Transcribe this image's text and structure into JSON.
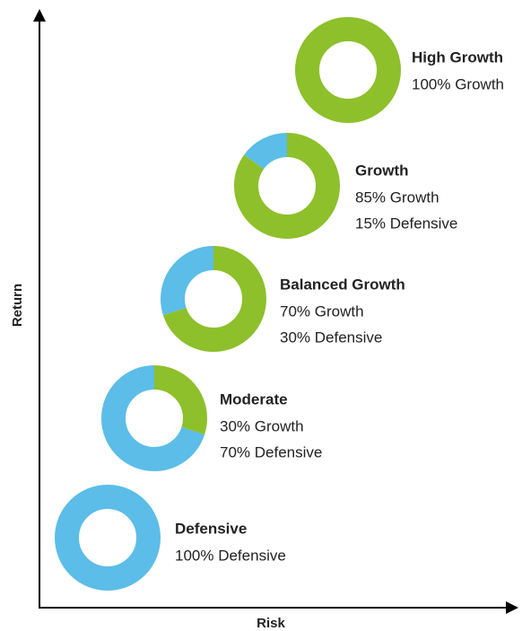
{
  "chart_data": {
    "type": "donut-ladder",
    "x_label": "Risk",
    "y_label": "Return",
    "portfolios": [
      {
        "name": "High Growth",
        "segments": [
          {
            "value": 100,
            "label": "100% Growth",
            "color": "#8dc02b"
          }
        ]
      },
      {
        "name": "Growth",
        "segments": [
          {
            "value": 85,
            "label": "85% Growth",
            "color": "#8dc02b"
          },
          {
            "value": 15,
            "label": "15% Defensive",
            "color": "#5bbde8"
          }
        ]
      },
      {
        "name": "Balanced Growth",
        "segments": [
          {
            "value": 70,
            "label": "70% Growth",
            "color": "#8dc02b"
          },
          {
            "value": 30,
            "label": "30% Defensive",
            "color": "#5bbde8"
          }
        ]
      },
      {
        "name": "Moderate",
        "segments": [
          {
            "value": 30,
            "label": "30% Growth",
            "color": "#8dc02b"
          },
          {
            "value": 70,
            "label": "70% Defensive",
            "color": "#5bbde8"
          }
        ]
      },
      {
        "name": "Defensive",
        "segments": [
          {
            "value": 100,
            "label": "100% Defensive",
            "color": "#5bbde8"
          }
        ]
      }
    ]
  }
}
